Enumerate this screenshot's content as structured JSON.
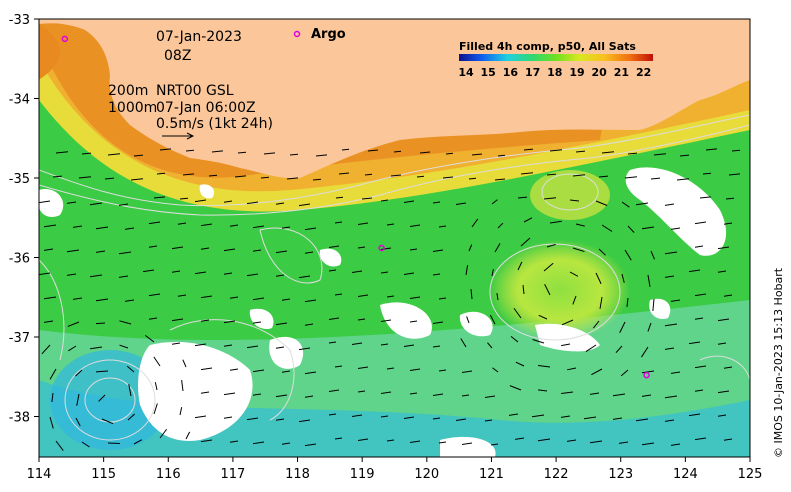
{
  "map": {
    "date": "07-Jan-2023",
    "hour": "08Z",
    "depth_200": "200m",
    "depth_1000": "1000m",
    "product": "NRT00 GSL",
    "product_time": "07-Jan 06:00Z",
    "scale_text": "0.5m/s (1kt 24h)",
    "argo_label": "Argo",
    "colorbar_title": "Filled 4h comp, p50, All Sats",
    "colorbar_ticks": [
      "14",
      "15",
      "16",
      "17",
      "18",
      "19",
      "20",
      "21",
      "22"
    ],
    "credit": "© IMOS 10-Jan-2023 15:13 Hobart",
    "x_ticks": [
      "114",
      "115",
      "116",
      "117",
      "118",
      "119",
      "120",
      "121",
      "122",
      "123",
      "124",
      "125"
    ],
    "y_ticks": [
      "-33",
      "-34",
      "-35",
      "-36",
      "-37",
      "-38"
    ],
    "land_color": "#fbc79a",
    "argo_color": "#e000e0",
    "argo_floats_lonlat": [
      [
        114.4,
        -33.25
      ],
      [
        119.3,
        -35.88
      ],
      [
        123.4,
        -37.48
      ]
    ]
  }
}
